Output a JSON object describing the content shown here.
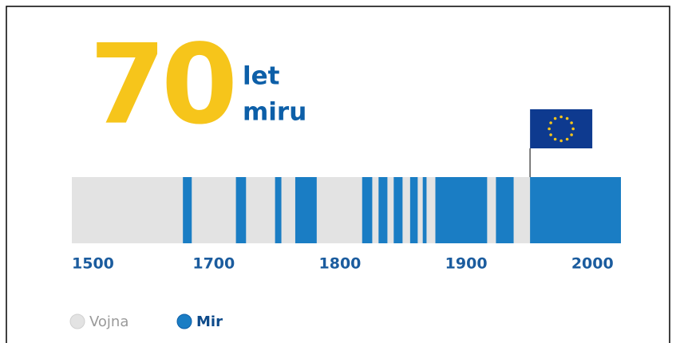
{
  "chart_data": {
    "type": "timeline",
    "title": "70",
    "subtitle": [
      "let",
      "miru"
    ],
    "start_label": "1500",
    "xlim": [
      1580,
      2015
    ],
    "xticks": [
      1700,
      1800,
      1900,
      2000
    ],
    "series": [
      {
        "name": "Vojna",
        "color": "#e3e3e3"
      },
      {
        "name": "Mir",
        "color": "#1a7dc4",
        "periods": [
          [
            1668,
            1675
          ],
          [
            1710,
            1718
          ],
          [
            1741,
            1746
          ],
          [
            1757,
            1774
          ],
          [
            1810,
            1818
          ],
          [
            1823,
            1830
          ],
          [
            1835,
            1842
          ],
          [
            1848,
            1854
          ],
          [
            1858,
            1861
          ],
          [
            1868,
            1909
          ],
          [
            1916,
            1930
          ],
          [
            1943,
            2015
          ]
        ]
      }
    ]
  }
}
